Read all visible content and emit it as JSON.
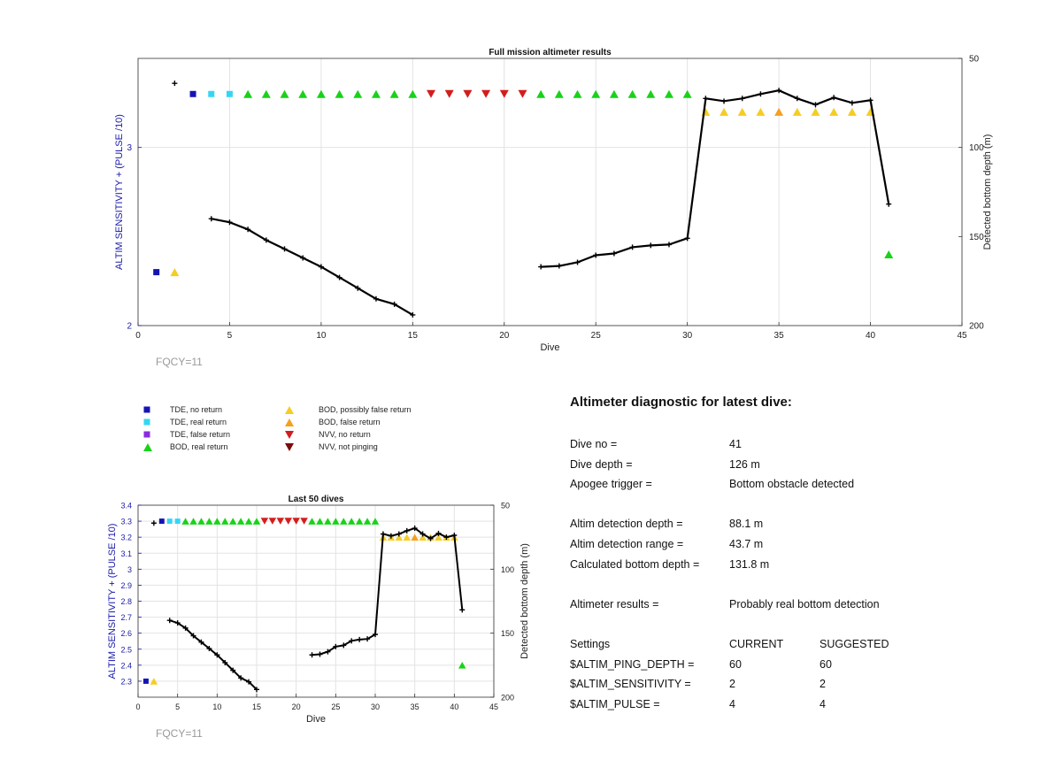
{
  "chart_data": [
    {
      "type": "scatter",
      "title": "Full mission altimeter results",
      "xlabel": "Dive",
      "ylabel": "ALTIM SENSITIVITY + (PULSE /10)",
      "y2label": "Detected bottom depth (m)",
      "xlim": [
        0,
        45
      ],
      "ylim": [
        2,
        3.5
      ],
      "y2lim": [
        200,
        50
      ],
      "xticks": [
        "0",
        "5",
        "10",
        "15",
        "20",
        "25",
        "30",
        "35",
        "40",
        "45"
      ],
      "yticks": [
        "2",
        "3"
      ],
      "y2ticks": [
        "50",
        "100",
        "150",
        "200"
      ],
      "annotation": "FQCY=11",
      "grid": true
    },
    {
      "type": "scatter",
      "title": "Last 50 dives",
      "xlabel": "Dive",
      "ylabel": "ALTIM SENSITIVITY + (PULSE /10)",
      "y2label": "Detected bottom depth (m)",
      "xlim": [
        0,
        45
      ],
      "ylim": [
        2.2,
        3.4
      ],
      "y2lim": [
        200,
        50
      ],
      "xticks": [
        "0",
        "5",
        "10",
        "15",
        "20",
        "25",
        "30",
        "35",
        "40",
        "45"
      ],
      "yticks": [
        "2.3",
        "2.4",
        "2.5",
        "2.6",
        "2.7",
        "2.8",
        "2.9",
        "3",
        "3.1",
        "3.2",
        "3.3",
        "3.4"
      ],
      "y2ticks": [
        "50",
        "100",
        "150",
        "200"
      ],
      "annotation": "FQCY=11",
      "grid": true
    }
  ],
  "series": {
    "tde_no_return": [
      [
        1,
        2.3
      ],
      [
        3,
        3.3
      ]
    ],
    "tde_real_return": [
      [
        4,
        3.3
      ],
      [
        5,
        3.3
      ]
    ],
    "bod_real_return": [
      [
        6,
        3.3
      ],
      [
        7,
        3.3
      ],
      [
        8,
        3.3
      ],
      [
        9,
        3.3
      ],
      [
        10,
        3.3
      ],
      [
        11,
        3.3
      ],
      [
        12,
        3.3
      ],
      [
        13,
        3.3
      ],
      [
        14,
        3.3
      ],
      [
        15,
        3.3
      ],
      [
        22,
        3.3
      ],
      [
        23,
        3.3
      ],
      [
        24,
        3.3
      ],
      [
        25,
        3.3
      ],
      [
        26,
        3.3
      ],
      [
        27,
        3.3
      ],
      [
        28,
        3.3
      ],
      [
        29,
        3.3
      ],
      [
        30,
        3.3
      ],
      [
        41,
        2.4
      ]
    ],
    "nvv_no_return": [
      [
        16,
        3.3
      ],
      [
        17,
        3.3
      ],
      [
        18,
        3.3
      ],
      [
        19,
        3.3
      ],
      [
        20,
        3.3
      ],
      [
        21,
        3.3
      ]
    ],
    "bod_possibly_false": [
      [
        2,
        2.3
      ],
      [
        31,
        3.2
      ],
      [
        32,
        3.2
      ],
      [
        33,
        3.2
      ],
      [
        34,
        3.2
      ],
      [
        36,
        3.2
      ],
      [
        37,
        3.2
      ],
      [
        38,
        3.2
      ],
      [
        39,
        3.2
      ],
      [
        40,
        3.2
      ]
    ],
    "bod_false_return": [
      [
        35,
        3.2
      ]
    ],
    "bottom_depth_segments": [
      [
        [
          2,
          64
        ]
      ],
      [
        [
          4,
          140
        ],
        [
          5,
          142
        ],
        [
          6,
          146
        ],
        [
          7,
          152
        ],
        [
          8,
          157
        ],
        [
          9,
          162
        ],
        [
          10,
          167
        ],
        [
          11,
          173
        ],
        [
          12,
          179
        ],
        [
          13,
          185
        ],
        [
          14,
          188
        ],
        [
          15,
          194
        ]
      ],
      [
        [
          22,
          167
        ],
        [
          23,
          166.5
        ],
        [
          24,
          164.5
        ],
        [
          25,
          160.5
        ],
        [
          26,
          159.5
        ],
        [
          27,
          156
        ],
        [
          28,
          155
        ],
        [
          29,
          154.5
        ],
        [
          30,
          151
        ],
        [
          31,
          72.5
        ],
        [
          32,
          74
        ],
        [
          33,
          72.5
        ],
        [
          34,
          70
        ],
        [
          35,
          68
        ],
        [
          36,
          72.5
        ],
        [
          37,
          76
        ],
        [
          38,
          72
        ],
        [
          39,
          75
        ],
        [
          40,
          73.5
        ],
        [
          41,
          131.8
        ]
      ]
    ]
  },
  "legend": {
    "items": [
      {
        "label": "TDE, no return",
        "color": "#1414b4",
        "shape": "square"
      },
      {
        "label": "TDE, real return",
        "color": "#35d6f5",
        "shape": "square"
      },
      {
        "label": "TDE, false return",
        "color": "#8a2be2",
        "shape": "square"
      },
      {
        "label": "BOD, real return",
        "color": "#19d219",
        "shape": "triangle-up"
      },
      {
        "label": "BOD, possibly false return",
        "color": "#f5cd23",
        "shape": "triangle-up"
      },
      {
        "label": "BOD, false return",
        "color": "#f5a01e",
        "shape": "triangle-up"
      },
      {
        "label": "NVV, no return",
        "color": "#d21e1e",
        "shape": "triangle-down"
      },
      {
        "label": "NVV, not pinging",
        "color": "#7a0d0d",
        "shape": "triangle-down"
      }
    ]
  },
  "diagnostic": {
    "title": "Altimeter diagnostic for latest dive:",
    "dive_no_label": "Dive no =",
    "dive_no": "41",
    "dive_depth_label": "Dive depth =",
    "dive_depth": "126 m",
    "apogee_label": "Apogee trigger =",
    "apogee": "Bottom obstacle detected",
    "altim_depth_label": "Altim detection depth =",
    "altim_depth": "88.1 m",
    "altim_range_label": "Altim detection range =",
    "altim_range": "43.7 m",
    "calc_depth_label": "Calculated bottom depth =",
    "calc_depth": "131.8 m",
    "results_label": "Altimeter results =",
    "results": "Probably real bottom detection",
    "settings_label": "Settings",
    "current_label": "CURRENT",
    "suggested_label": "SUGGESTED",
    "ping_label": "$ALTIM_PING_DEPTH =",
    "ping_current": "60",
    "ping_suggested": "60",
    "sens_label": "$ALTIM_SENSITIVITY =",
    "sens_current": "2",
    "sens_suggested": "2",
    "pulse_label": "$ALTIM_PULSE =",
    "pulse_current": "4",
    "pulse_suggested": "4"
  },
  "colors": {
    "axis_left": "#1a1aa8",
    "axis": "#333333",
    "grid": "#e3e3e3",
    "line": "#000000",
    "fqcy": "#999999"
  }
}
